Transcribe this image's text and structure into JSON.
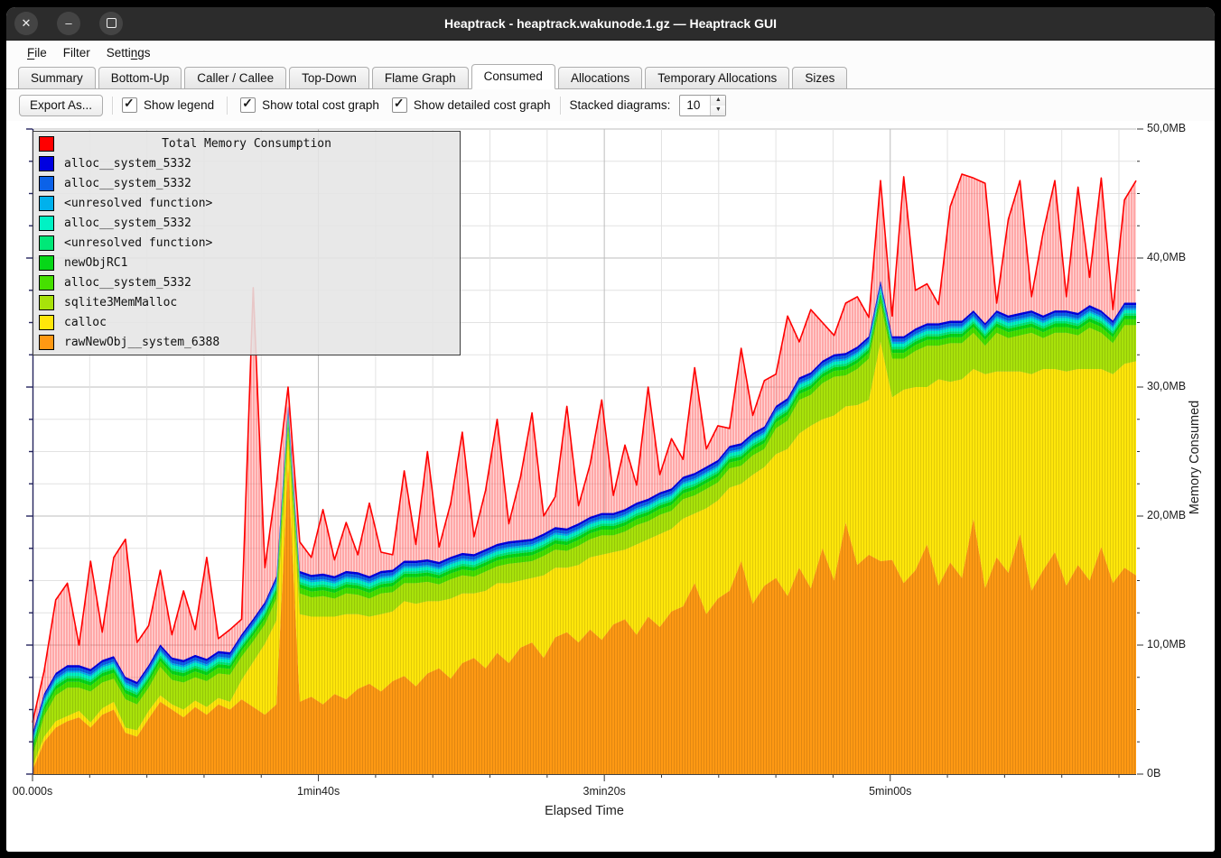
{
  "window": {
    "title": "Heaptrack - heaptrack.wakunode.1.gz — Heaptrack GUI",
    "controls": [
      "close",
      "minimize",
      "maximize"
    ]
  },
  "menu": {
    "items": [
      {
        "label": "File",
        "mnemonic_index": 0
      },
      {
        "label": "Filter",
        "mnemonic_index": -1
      },
      {
        "label": "Settings",
        "mnemonic_index": 5
      }
    ]
  },
  "tabs": {
    "active_index": 5,
    "items": [
      {
        "label": "Summary"
      },
      {
        "label": "Bottom-Up"
      },
      {
        "label": "Caller / Callee"
      },
      {
        "label": "Top-Down"
      },
      {
        "label": "Flame Graph"
      },
      {
        "label": "Consumed"
      },
      {
        "label": "Allocations"
      },
      {
        "label": "Temporary Allocations"
      },
      {
        "label": "Sizes"
      }
    ]
  },
  "toolbar": {
    "export_label": "Export As...",
    "checkboxes": [
      {
        "label": "Show legend",
        "checked": true
      },
      {
        "label": "Show total cost graph",
        "checked": true
      },
      {
        "label": "Show detailed cost graph",
        "checked": true
      }
    ],
    "stacked_label": "Stacked diagrams:",
    "stacked_value": "10"
  },
  "legend": {
    "title": "Total Memory Consumption",
    "title_color": "#ff0000",
    "items": [
      {
        "label": "alloc__system_5332",
        "color": "#0000e0"
      },
      {
        "label": "alloc__system_5332",
        "color": "#0c62e8"
      },
      {
        "label": "<unresolved function>",
        "color": "#00b1ec"
      },
      {
        "label": "alloc__system_5332",
        "color": "#00f2c4"
      },
      {
        "label": "<unresolved function>",
        "color": "#00e878"
      },
      {
        "label": "newObjRC1",
        "color": "#06d718"
      },
      {
        "label": "alloc__system_5332",
        "color": "#46e000"
      },
      {
        "label": "sqlite3MemMalloc",
        "color": "#a8e20a"
      },
      {
        "label": "calloc",
        "color": "#ffe60a"
      },
      {
        "label": "rawNewObj__system_6388",
        "color": "#ff9913"
      }
    ]
  },
  "chart_data": {
    "type": "area",
    "title": "Total Memory Consumption",
    "xlabel": "Elapsed Time",
    "ylabel": "Memory Consumed",
    "x_unit": "s",
    "y_unit": "MB",
    "x_max_seconds": 386,
    "ylim": [
      0,
      50
    ],
    "y_major_mb": 10,
    "y_minor_mb": 2.5,
    "x_major_s": 100,
    "x_minor_s": 20,
    "grid": true,
    "legend_position": "top-left",
    "x_ticks": [
      {
        "t": 0,
        "label": "00.000s"
      },
      {
        "t": 100,
        "label": "1min40s"
      },
      {
        "t": 200,
        "label": "3min20s"
      },
      {
        "t": 300,
        "label": "5min00s"
      }
    ],
    "y_ticks": [
      {
        "v": 0,
        "label": "0B"
      },
      {
        "v": 10,
        "label": "10,0MB"
      },
      {
        "v": 20,
        "label": "20,0MB"
      },
      {
        "v": 30,
        "label": "30,0MB"
      },
      {
        "v": 40,
        "label": "40,0MB"
      },
      {
        "v": 50,
        "label": "50,0MB"
      }
    ],
    "total": {
      "name": "Total Memory Consumption",
      "color": "#ff0000",
      "values": [
        4.0,
        8.0,
        13.5,
        14.8,
        10.0,
        16.5,
        11.0,
        16.8,
        18.2,
        10.2,
        11.5,
        15.8,
        10.8,
        14.2,
        11.2,
        16.8,
        10.5,
        11.2,
        12.0,
        37.7,
        16.0,
        22.5,
        30.0,
        18.0,
        16.8,
        20.5,
        16.6,
        19.5,
        17.0,
        21.0,
        17.2,
        17.0,
        23.5,
        17.8,
        25.0,
        17.6,
        21.0,
        26.5,
        18.4,
        22.0,
        27.5,
        19.4,
        23.0,
        28.0,
        20.0,
        21.5,
        28.5,
        20.8,
        24.0,
        29.0,
        21.6,
        25.5,
        22.4,
        30.0,
        23.2,
        26.0,
        24.4,
        31.5,
        25.2,
        27.0,
        26.8,
        33.0,
        27.8,
        30.5,
        31.0,
        35.5,
        33.5,
        36.0,
        35.0,
        34.0,
        36.5,
        37.0,
        35.4,
        46.0,
        35.5,
        46.3,
        37.5,
        38.0,
        36.4,
        44.0,
        46.5,
        46.2,
        45.8,
        36.5,
        43.0,
        46.0,
        37.0,
        42.0,
        46.0,
        37.0,
        45.5,
        38.5,
        46.2,
        36.0,
        44.5,
        46.0
      ]
    },
    "stack": [
      {
        "name": "rawNewObj__system_6388",
        "color": "#ff9913",
        "values": [
          0.3,
          2.5,
          3.6,
          4.1,
          4.4,
          3.6,
          4.6,
          5.0,
          3.2,
          2.9,
          4.3,
          5.6,
          5.0,
          4.4,
          5.2,
          4.6,
          5.4,
          5.0,
          5.8,
          5.2,
          4.6,
          5.4,
          24.0,
          5.6,
          6.0,
          5.4,
          6.2,
          5.8,
          6.6,
          7.0,
          6.4,
          7.2,
          7.6,
          6.8,
          7.8,
          8.2,
          7.4,
          8.6,
          9.0,
          8.2,
          9.4,
          8.6,
          9.8,
          10.2,
          9.0,
          10.6,
          11.0,
          10.2,
          11.2,
          10.4,
          11.6,
          12.0,
          10.8,
          12.2,
          11.4,
          12.6,
          13.0,
          14.8,
          12.4,
          13.6,
          14.2,
          16.5,
          13.2,
          14.6,
          15.2,
          13.8,
          16.0,
          14.4,
          17.5,
          15.0,
          19.5,
          16.2,
          17.0,
          16.5,
          16.6,
          14.8,
          15.8,
          17.8,
          14.6,
          16.4,
          15.2,
          19.8,
          14.4,
          16.8,
          15.6,
          18.6,
          14.2,
          15.8,
          17.2,
          14.6,
          16.2,
          15.0,
          17.6,
          14.8,
          16.0,
          15.4
        ]
      },
      {
        "name": "calloc",
        "color": "#ffe60a",
        "values": [
          0.3,
          0.4,
          0.5,
          0.4,
          0.5,
          0.4,
          0.5,
          0.6,
          0.4,
          0.5,
          0.6,
          0.5,
          0.4,
          0.6,
          0.5,
          0.6,
          0.5,
          0.6,
          1.5,
          3.5,
          5.5,
          6.5,
          2.0,
          6.8,
          6.2,
          6.8,
          6.0,
          6.6,
          5.8,
          5.2,
          6.0,
          5.4,
          5.8,
          6.4,
          5.6,
          5.2,
          6.2,
          5.4,
          5.0,
          6.0,
          5.4,
          6.2,
          5.2,
          5.0,
          6.4,
          5.4,
          5.0,
          6.0,
          5.6,
          6.6,
          5.6,
          5.4,
          7.0,
          6.0,
          7.2,
          6.4,
          6.8,
          5.4,
          8.2,
          7.6,
          8.0,
          6.0,
          10.0,
          9.2,
          9.6,
          11.4,
          10.4,
          12.6,
          10.0,
          12.8,
          9.0,
          12.4,
          12.0,
          17.0,
          12.6,
          15.0,
          14.2,
          12.2,
          16.0,
          14.0,
          15.4,
          11.6,
          16.6,
          14.4,
          15.6,
          12.6,
          16.8,
          15.6,
          14.2,
          16.6,
          15.2,
          16.4,
          13.8,
          16.2,
          15.8,
          16.6
        ]
      },
      {
        "name": "sqlite3MemMalloc",
        "color": "#a8e20a",
        "values": [
          0.8,
          1.6,
          2.0,
          2.2,
          1.8,
          2.4,
          2.0,
          1.8,
          2.2,
          2.0,
          1.8,
          2.2,
          1.9,
          2.1,
          1.8,
          2.0,
          1.9,
          2.1,
          1.8,
          1.6,
          1.5,
          1.7,
          0.8,
          1.6,
          1.5,
          1.6,
          1.4,
          1.6,
          1.5,
          1.4,
          1.6,
          1.5,
          1.4,
          1.6,
          1.5,
          1.3,
          1.5,
          1.4,
          1.3,
          1.5,
          1.3,
          1.5,
          1.4,
          1.3,
          1.5,
          1.4,
          1.3,
          1.5,
          1.4,
          1.5,
          1.3,
          1.4,
          1.5,
          1.4,
          1.5,
          1.4,
          1.5,
          1.4,
          1.5,
          1.4,
          1.5,
          1.4,
          1.5,
          1.4,
          2.0,
          2.2,
          2.6,
          2.4,
          2.8,
          3.0,
          2.4,
          2.8,
          3.2,
          3.0,
          3.0,
          2.4,
          2.8,
          3.2,
          2.6,
          3.0,
          2.8,
          2.8,
          2.2,
          3.0,
          2.6,
          2.8,
          3.2,
          2.4,
          2.8,
          3.0,
          2.6,
          3.2,
          2.8,
          2.4,
          3.0,
          2.8
        ]
      },
      {
        "name": "alloc__system_5332",
        "color": "#46e000",
        "values": 0.45
      },
      {
        "name": "newObjRC1",
        "color": "#06d718",
        "values": 0.28
      },
      {
        "name": "<unresolved function>",
        "color": "#00e878",
        "values": 0.18
      },
      {
        "name": "alloc__system_5332",
        "color": "#00f2c4",
        "values": 0.25
      },
      {
        "name": "<unresolved function>",
        "color": "#00b1ec",
        "values": 0.15
      },
      {
        "name": "alloc__system_5332",
        "color": "#0c62e8",
        "values": 0.25
      },
      {
        "name": "alloc__system_5332",
        "color": "#0000e0",
        "values": 0.18
      }
    ]
  }
}
